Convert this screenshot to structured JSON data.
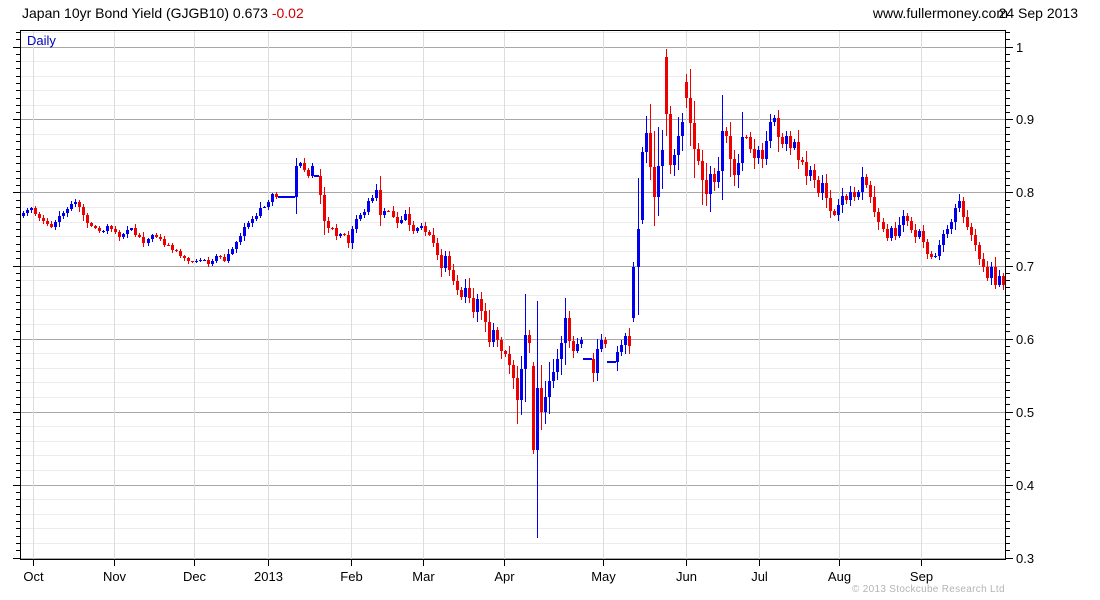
{
  "header": {
    "title": "Japan 10yr Bond Yield (GJGB10)",
    "last_value": "0.673",
    "change": "-0.02",
    "website": "www.fullermoney.com",
    "date": "24 Sep 2013"
  },
  "chart_meta": {
    "frequency_label": "Daily",
    "copyright": "© 2013 Stockcube Research Ltd"
  },
  "colors": {
    "up_candle": "#0000ee",
    "down_candle": "#ee0000",
    "change_text": "#cc0000",
    "daily_label": "#0000bb",
    "grid_minor": "#ececec",
    "grid_major": "#a8a8a8",
    "grid_month": "#dcdcdc",
    "axis_line": "#000000",
    "label_text": "#000000",
    "copyright_text": "#b4b4b4"
  },
  "chart_data": {
    "type": "candlestick",
    "title": "Japan 10yr Bond Yield (GJGB10)",
    "frequency": "Daily",
    "last_close": 0.673,
    "change": -0.02,
    "y_axis": {
      "min": 0.3,
      "max": 1.0,
      "tick_labels": [
        "1",
        "0.9",
        "0.8",
        "0.7",
        "0.6",
        "0.5",
        "0.4",
        "0.3"
      ],
      "major_step": 0.1,
      "minor_grid_step": 0.02,
      "minor_tick_step": 0.01,
      "side": "right",
      "grid": true
    },
    "x_axis": {
      "tick_labels": [
        "Oct",
        "Nov",
        "Dec",
        "2013",
        "Feb",
        "Mar",
        "Apr",
        "May",
        "Jun",
        "Jul",
        "Aug",
        "Sep"
      ],
      "tick_days": [
        2.5,
        22.7,
        42.6,
        61,
        81.7,
        99.6,
        119.8,
        144.4,
        165.1,
        183.3,
        203.2,
        223.6
      ],
      "grid": true
    },
    "num_days": 245,
    "close_anchors": [
      [
        0,
        0.775
      ],
      [
        2,
        0.781
      ],
      [
        4,
        0.766
      ],
      [
        7,
        0.754
      ],
      [
        10,
        0.772
      ],
      [
        13,
        0.786
      ],
      [
        16,
        0.76
      ],
      [
        19,
        0.744
      ],
      [
        21,
        0.753
      ],
      [
        24,
        0.74
      ],
      [
        27,
        0.75
      ],
      [
        30,
        0.733
      ],
      [
        33,
        0.742
      ],
      [
        36,
        0.726
      ],
      [
        39,
        0.714
      ],
      [
        42,
        0.703
      ],
      [
        44,
        0.71
      ],
      [
        46,
        0.702
      ],
      [
        48,
        0.712
      ],
      [
        50,
        0.707
      ],
      [
        52,
        0.724
      ],
      [
        54,
        0.742
      ],
      [
        56,
        0.758
      ],
      [
        58,
        0.77
      ],
      [
        60,
        0.783
      ],
      [
        62,
        0.795
      ],
      [
        63,
        0.794
      ],
      [
        67,
        0.794
      ],
      [
        68,
        0.838
      ],
      [
        69,
        0.842
      ],
      [
        70,
        0.828
      ],
      [
        71,
        0.822
      ],
      [
        72,
        0.833
      ],
      [
        73,
        0.822
      ],
      [
        74,
        0.798
      ],
      [
        75,
        0.758
      ],
      [
        77,
        0.75
      ],
      [
        78,
        0.74
      ],
      [
        80,
        0.744
      ],
      [
        81,
        0.731
      ],
      [
        83,
        0.763
      ],
      [
        85,
        0.775
      ],
      [
        87,
        0.795
      ],
      [
        88,
        0.802
      ],
      [
        89,
        0.77
      ],
      [
        91,
        0.778
      ],
      [
        93,
        0.758
      ],
      [
        95,
        0.768
      ],
      [
        97,
        0.748
      ],
      [
        99,
        0.755
      ],
      [
        101,
        0.742
      ],
      [
        102,
        0.73
      ],
      [
        104,
        0.7
      ],
      [
        105,
        0.71
      ],
      [
        106,
        0.695
      ],
      [
        108,
        0.67
      ],
      [
        109,
        0.655
      ],
      [
        110,
        0.668
      ],
      [
        112,
        0.64
      ],
      [
        113,
        0.655
      ],
      [
        115,
        0.62
      ],
      [
        116,
        0.6
      ],
      [
        117,
        0.615
      ],
      [
        118,
        0.595
      ],
      [
        120,
        0.575
      ],
      [
        121,
        0.56
      ],
      [
        122,
        0.545
      ],
      [
        123,
        0.52
      ],
      [
        124,
        0.562
      ],
      [
        125,
        0.6
      ],
      [
        126,
        0.588
      ],
      [
        129,
        0.5
      ],
      [
        130,
        0.52
      ],
      [
        131,
        0.545
      ],
      [
        133,
        0.568
      ],
      [
        135,
        0.628
      ],
      [
        136,
        0.6
      ],
      [
        137,
        0.585
      ],
      [
        139,
        0.602
      ],
      [
        142,
        0.556
      ],
      [
        143,
        0.588
      ],
      [
        144,
        0.598
      ],
      [
        145,
        0.59
      ],
      [
        148,
        0.578
      ],
      [
        149,
        0.59
      ],
      [
        150,
        0.6
      ],
      [
        151,
        0.592
      ],
      [
        153,
        0.757
      ],
      [
        155,
        0.875
      ],
      [
        156,
        0.83
      ],
      [
        157,
        0.8
      ],
      [
        158,
        0.835
      ],
      [
        159,
        0.862
      ],
      [
        162,
        0.858
      ],
      [
        163,
        0.875
      ],
      [
        164,
        0.902
      ],
      [
        166,
        0.898
      ],
      [
        167,
        0.862
      ],
      [
        168,
        0.838
      ],
      [
        169,
        0.812
      ],
      [
        170,
        0.8
      ],
      [
        171,
        0.825
      ],
      [
        172,
        0.81
      ],
      [
        173,
        0.835
      ],
      [
        174,
        0.888
      ],
      [
        175,
        0.878
      ],
      [
        176,
        0.848
      ],
      [
        177,
        0.82
      ],
      [
        178,
        0.845
      ],
      [
        179,
        0.872
      ],
      [
        180,
        0.878
      ],
      [
        181,
        0.862
      ],
      [
        182,
        0.845
      ],
      [
        183,
        0.862
      ],
      [
        184,
        0.845
      ],
      [
        185,
        0.872
      ],
      [
        186,
        0.895
      ],
      [
        187,
        0.905
      ],
      [
        188,
        0.878
      ],
      [
        189,
        0.868
      ],
      [
        190,
        0.878
      ],
      [
        191,
        0.858
      ],
      [
        192,
        0.868
      ],
      [
        193,
        0.848
      ],
      [
        194,
        0.838
      ],
      [
        195,
        0.825
      ],
      [
        196,
        0.83
      ],
      [
        197,
        0.815
      ],
      [
        198,
        0.802
      ],
      [
        199,
        0.812
      ],
      [
        200,
        0.79
      ],
      [
        201,
        0.778
      ],
      [
        202,
        0.772
      ],
      [
        203,
        0.785
      ],
      [
        204,
        0.798
      ],
      [
        205,
        0.79
      ],
      [
        206,
        0.8
      ],
      [
        207,
        0.792
      ],
      [
        208,
        0.8
      ],
      [
        209,
        0.822
      ],
      [
        210,
        0.808
      ],
      [
        211,
        0.792
      ],
      [
        212,
        0.775
      ],
      [
        213,
        0.762
      ],
      [
        214,
        0.748
      ],
      [
        215,
        0.738
      ],
      [
        216,
        0.752
      ],
      [
        217,
        0.74
      ],
      [
        218,
        0.755
      ],
      [
        219,
        0.768
      ],
      [
        220,
        0.762
      ],
      [
        221,
        0.752
      ],
      [
        222,
        0.74
      ],
      [
        223,
        0.748
      ],
      [
        224,
        0.73
      ],
      [
        225,
        0.718
      ],
      [
        226,
        0.708
      ],
      [
        227,
        0.712
      ],
      [
        228,
        0.725
      ],
      [
        229,
        0.74
      ],
      [
        230,
        0.752
      ],
      [
        231,
        0.762
      ],
      [
        232,
        0.775
      ],
      [
        233,
        0.79
      ],
      [
        234,
        0.768
      ],
      [
        235,
        0.755
      ],
      [
        236,
        0.742
      ],
      [
        237,
        0.728
      ],
      [
        238,
        0.712
      ],
      [
        239,
        0.7
      ],
      [
        240,
        0.68
      ],
      [
        241,
        0.697
      ],
      [
        242,
        0.676
      ],
      [
        243,
        0.684
      ],
      [
        244,
        0.673
      ]
    ],
    "flat_segments": [
      {
        "from": 64,
        "to": 67,
        "value": 0.794
      },
      {
        "from": 73,
        "to": 73,
        "value": 0.822
      },
      {
        "from": 140,
        "to": 141,
        "value": 0.572
      },
      {
        "from": 146,
        "to": 147,
        "value": 0.568
      }
    ],
    "special_candles": {
      "127": {
        "o": 0.562,
        "h": 0.568,
        "l": 0.442,
        "c": 0.447
      },
      "128": {
        "o": 0.447,
        "h": 0.652,
        "l": 0.327,
        "c": 0.532
      },
      "152": {
        "o": 0.628,
        "h": 0.705,
        "l": 0.622,
        "c": 0.698
      },
      "154": {
        "o": 0.762,
        "h": 0.862,
        "l": 0.757,
        "c": 0.855
      },
      "160": {
        "o": 0.985,
        "h": 0.997,
        "l": 0.878,
        "c": 0.908
      },
      "161": {
        "o": 0.908,
        "h": 0.918,
        "l": 0.826,
        "c": 0.838
      },
      "165": {
        "o": 0.952,
        "h": 0.962,
        "l": 0.916,
        "c": 0.93
      }
    },
    "volatility_anchors": [
      [
        0,
        1
      ],
      [
        60,
        0.9
      ],
      [
        100,
        1.1
      ],
      [
        120,
        1.6
      ],
      [
        126,
        2.2
      ],
      [
        132,
        1.8
      ],
      [
        140,
        1.2
      ],
      [
        151,
        1.3
      ],
      [
        152,
        2.4
      ],
      [
        160,
        2.2
      ],
      [
        170,
        2.0
      ],
      [
        180,
        1.6
      ],
      [
        190,
        1.3
      ],
      [
        205,
        1.1
      ],
      [
        225,
        1.2
      ],
      [
        244,
        1.0
      ]
    ]
  }
}
